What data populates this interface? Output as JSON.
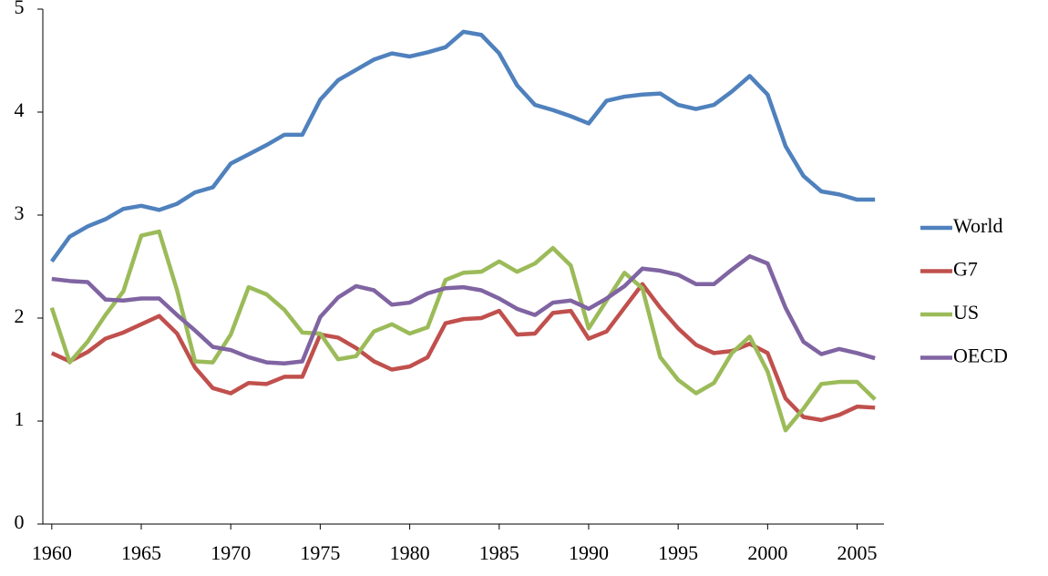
{
  "chart_data": {
    "type": "line",
    "x": [
      1960,
      1961,
      1962,
      1963,
      1964,
      1965,
      1966,
      1967,
      1968,
      1969,
      1970,
      1971,
      1972,
      1973,
      1974,
      1975,
      1976,
      1977,
      1978,
      1979,
      1980,
      1981,
      1982,
      1983,
      1984,
      1985,
      1986,
      1987,
      1988,
      1989,
      1990,
      1991,
      1992,
      1993,
      1994,
      1995,
      1996,
      1997,
      1998,
      1999,
      2000,
      2001,
      2002,
      2003,
      2004,
      2005,
      2006
    ],
    "series": [
      {
        "name": "World",
        "color": "#4f81bd",
        "values": [
          2.55,
          2.79,
          2.89,
          2.96,
          3.06,
          3.09,
          3.05,
          3.11,
          3.22,
          3.27,
          3.5,
          3.59,
          3.68,
          3.78,
          3.78,
          4.12,
          4.31,
          4.41,
          4.51,
          4.57,
          4.54,
          4.58,
          4.63,
          4.78,
          4.75,
          4.57,
          4.26,
          4.07,
          4.02,
          3.96,
          3.89,
          4.11,
          4.15,
          4.17,
          4.18,
          4.07,
          4.03,
          4.07,
          4.2,
          4.35,
          4.17,
          3.67,
          3.38,
          3.23,
          3.2,
          3.15,
          3.15
        ]
      },
      {
        "name": "G7",
        "color": "#c0504d",
        "values": [
          1.66,
          1.58,
          1.67,
          1.8,
          1.86,
          1.94,
          2.02,
          1.85,
          1.52,
          1.32,
          1.27,
          1.37,
          1.36,
          1.43,
          1.43,
          1.84,
          1.81,
          1.71,
          1.58,
          1.5,
          1.53,
          1.62,
          1.95,
          1.99,
          2.0,
          2.07,
          1.84,
          1.85,
          2.05,
          2.07,
          1.8,
          1.87,
          2.1,
          2.33,
          2.1,
          1.9,
          1.74,
          1.66,
          1.68,
          1.75,
          1.66,
          1.22,
          1.04,
          1.01,
          1.06,
          1.14,
          1.13
        ]
      },
      {
        "name": "US",
        "color": "#9bbb59",
        "values": [
          2.1,
          1.57,
          1.77,
          2.03,
          2.26,
          2.8,
          2.84,
          2.27,
          1.58,
          1.57,
          1.84,
          2.3,
          2.23,
          2.08,
          1.86,
          1.85,
          1.6,
          1.63,
          1.87,
          1.94,
          1.85,
          1.91,
          2.37,
          2.44,
          2.45,
          2.55,
          2.45,
          2.53,
          2.68,
          2.51,
          1.9,
          2.17,
          2.44,
          2.29,
          1.62,
          1.4,
          1.27,
          1.37,
          1.66,
          1.82,
          1.48,
          0.91,
          1.12,
          1.36,
          1.38,
          1.38,
          1.21
        ]
      },
      {
        "name": "OECD",
        "color": "#8064a2",
        "values": [
          2.38,
          2.36,
          2.35,
          2.18,
          2.17,
          2.19,
          2.19,
          2.03,
          1.88,
          1.72,
          1.69,
          1.62,
          1.57,
          1.56,
          1.58,
          2.01,
          2.2,
          2.31,
          2.27,
          2.13,
          2.15,
          2.24,
          2.29,
          2.3,
          2.27,
          2.19,
          2.09,
          2.03,
          2.15,
          2.17,
          2.09,
          2.19,
          2.31,
          2.48,
          2.46,
          2.42,
          2.33,
          2.33,
          2.47,
          2.6,
          2.53,
          2.1,
          1.77,
          1.65,
          1.7,
          1.66,
          1.61
        ]
      }
    ],
    "xlim": [
      1959.5,
      2006.5
    ],
    "xticks": [
      1960,
      1965,
      1970,
      1975,
      1980,
      1985,
      1990,
      1995,
      2000,
      2005
    ],
    "ylim": [
      0,
      5
    ],
    "yticks": [
      0,
      1,
      2,
      3,
      4,
      5
    ],
    "grid": false,
    "legend": "right"
  }
}
